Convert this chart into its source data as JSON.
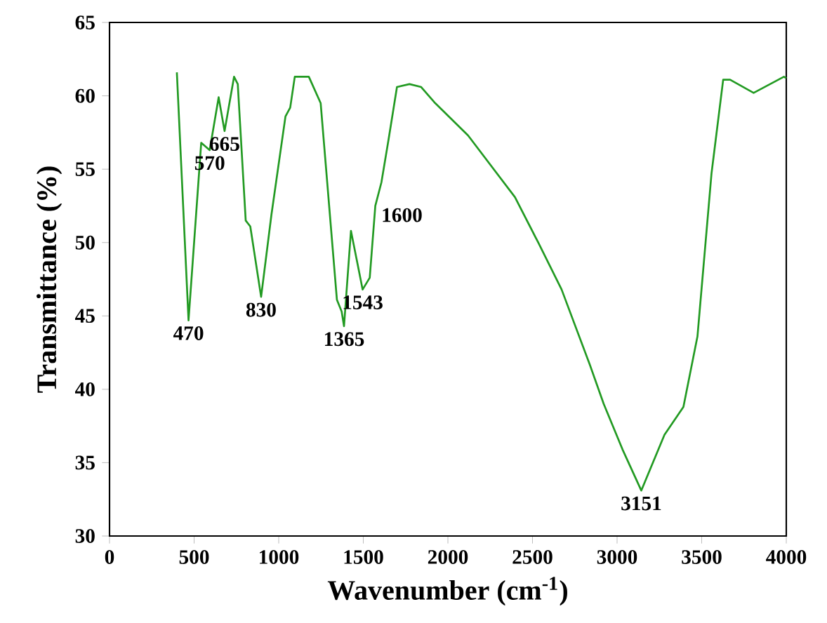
{
  "chart_data": {
    "type": "line",
    "xlabel": "Wavenumber (cm$^{-1}$)",
    "ylabel": "Transmittance (%)",
    "xlim": [
      0,
      4000
    ],
    "ylim": [
      30,
      65
    ],
    "xticks": [
      0,
      500,
      1000,
      1500,
      2000,
      2500,
      3000,
      3500,
      4000
    ],
    "yticks": [
      30,
      35,
      40,
      45,
      50,
      55,
      60,
      65
    ],
    "grid": false,
    "marker": "none",
    "line_style": "solid",
    "series": [
      {
        "color": "#229a22",
        "x": [
          398,
          467,
          542,
          592,
          645,
          680,
          736,
          758,
          805,
          832,
          896,
          957,
          1040,
          1068,
          1095,
          1178,
          1248,
          1344,
          1372,
          1386,
          1427,
          1496,
          1538,
          1571,
          1607,
          1649,
          1699,
          1773,
          1842,
          1925,
          2119,
          2396,
          2534,
          2672,
          2838,
          2921,
          3032,
          3143,
          3280,
          3392,
          3475,
          3558,
          3627,
          3668,
          3807,
          3986,
          4000
        ],
        "values": [
          61.6,
          44.7,
          56.8,
          56.3,
          59.9,
          57.6,
          61.3,
          60.8,
          51.5,
          51.1,
          46.3,
          51.9,
          58.6,
          59.2,
          61.3,
          61.3,
          59.5,
          46.1,
          45.3,
          44.3,
          50.8,
          46.8,
          47.6,
          52.5,
          54.1,
          57.0,
          60.6,
          60.8,
          60.6,
          59.5,
          57.3,
          53.1,
          50.0,
          46.8,
          41.7,
          39.0,
          35.9,
          33.1,
          36.9,
          38.8,
          43.6,
          54.7,
          61.1,
          61.1,
          60.2,
          61.3,
          61.2
        ]
      }
    ],
    "annotations": [
      {
        "text": "470",
        "x": 467,
        "y": 44.7
      },
      {
        "text": "570",
        "x": 592,
        "y": 56.3
      },
      {
        "text": "665",
        "x": 680,
        "y": 57.6
      },
      {
        "text": "830",
        "x": 896,
        "y": 46.3
      },
      {
        "text": "1365",
        "x": 1386,
        "y": 44.3
      },
      {
        "text": "1543",
        "x": 1496,
        "y": 46.8
      },
      {
        "text": "1600",
        "x": 1571,
        "y": 52.5
      },
      {
        "text": "3151",
        "x": 3143,
        "y": 33.1
      }
    ]
  }
}
